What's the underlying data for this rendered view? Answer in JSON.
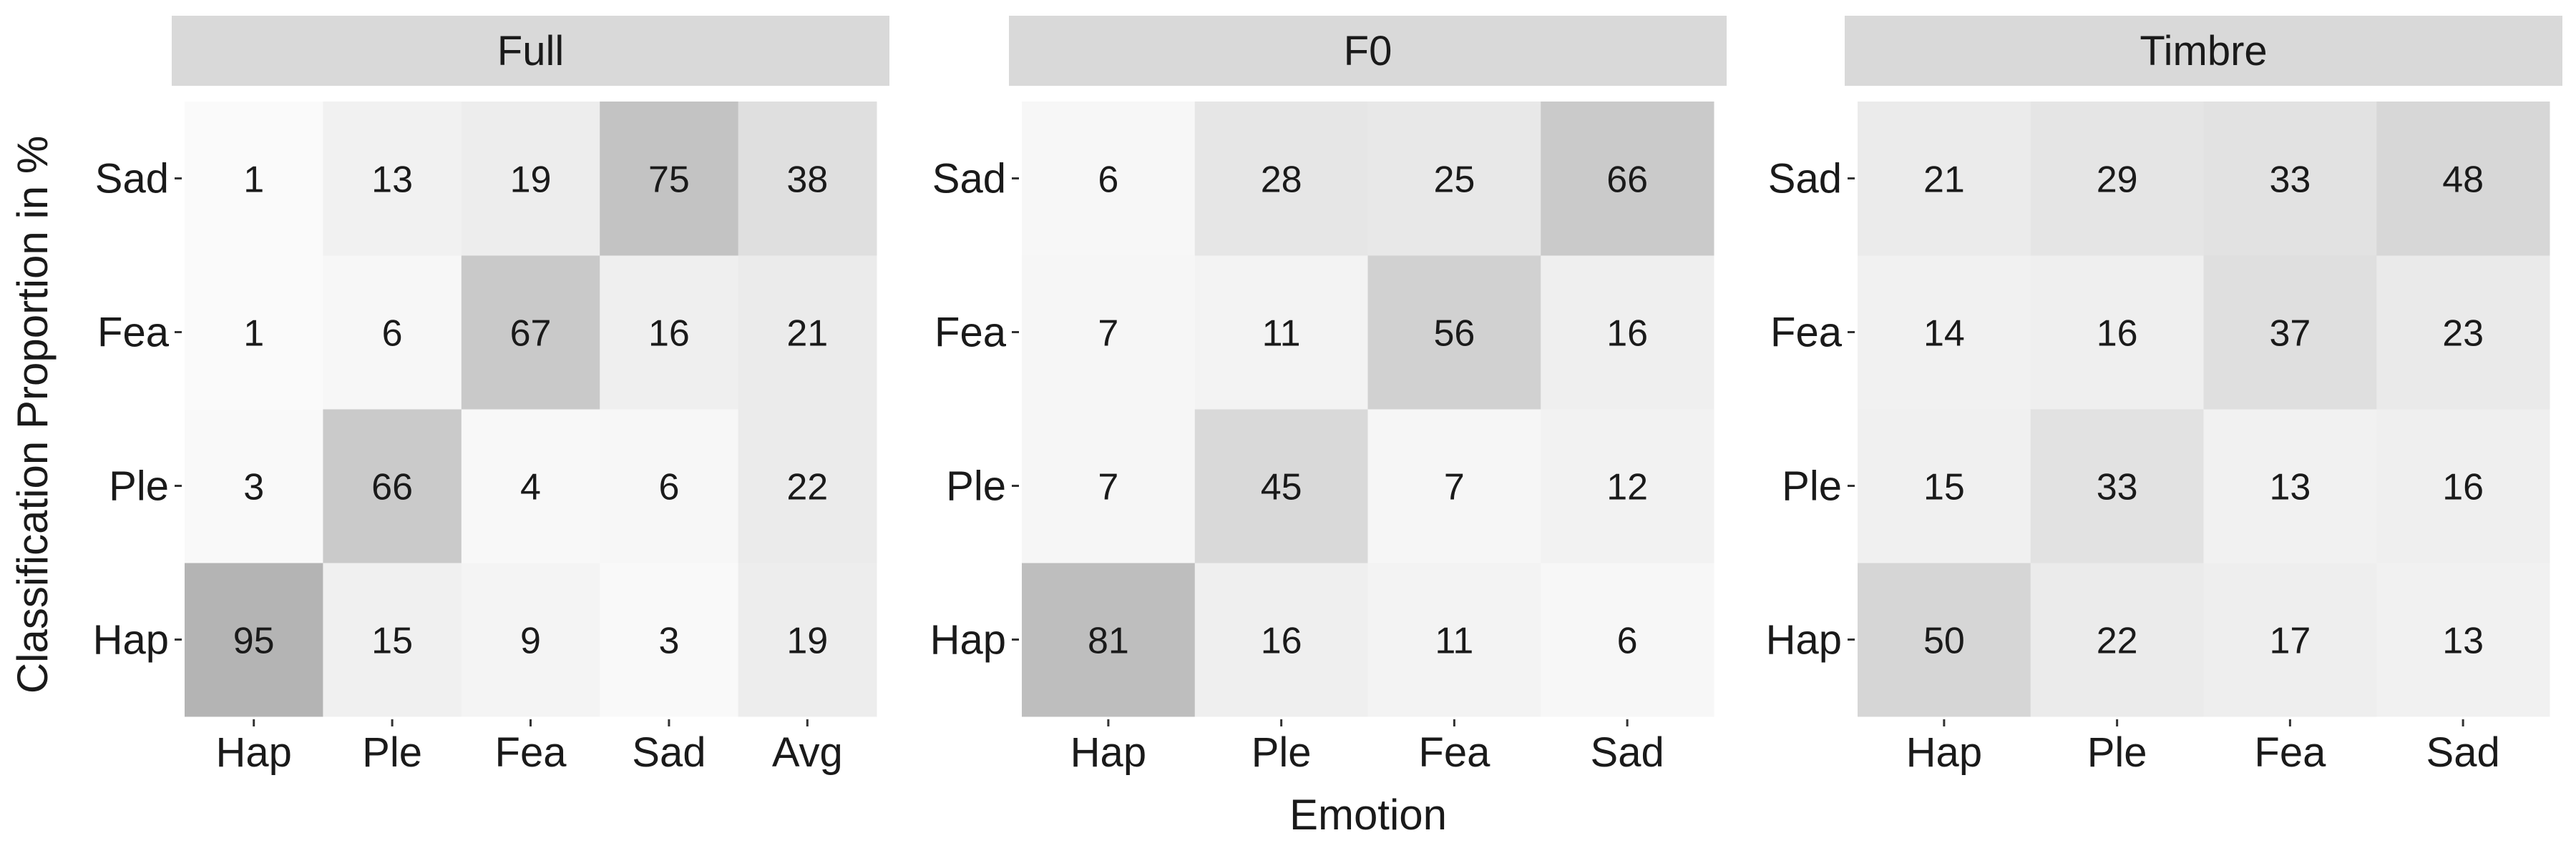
{
  "chart_data": {
    "type": "heatmap",
    "xlabel": "Emotion",
    "ylabel": "Classification Proportion in %",
    "y_categories": [
      "Hap",
      "Ple",
      "Fea",
      "Sad"
    ],
    "color_scale": {
      "low": "#fbfbfb",
      "high": "#b0b0b0",
      "min": 0,
      "max": 100
    },
    "facets": [
      {
        "title": "Full",
        "x_categories": [
          "Hap",
          "Ple",
          "Fea",
          "Sad",
          "Avg"
        ],
        "values": {
          "Sad": [
            1,
            13,
            19,
            75,
            38
          ],
          "Fea": [
            1,
            6,
            67,
            16,
            21
          ],
          "Ple": [
            3,
            66,
            4,
            6,
            22
          ],
          "Hap": [
            95,
            15,
            9,
            3,
            19
          ]
        }
      },
      {
        "title": "F0",
        "x_categories": [
          "Hap",
          "Ple",
          "Fea",
          "Sad"
        ],
        "values": {
          "Sad": [
            6,
            28,
            25,
            66
          ],
          "Fea": [
            7,
            11,
            56,
            16
          ],
          "Ple": [
            7,
            45,
            7,
            12
          ],
          "Hap": [
            81,
            16,
            11,
            6
          ]
        }
      },
      {
        "title": "Timbre",
        "x_categories": [
          "Hap",
          "Ple",
          "Fea",
          "Sad"
        ],
        "values": {
          "Sad": [
            21,
            29,
            33,
            48
          ],
          "Fea": [
            14,
            16,
            37,
            23
          ],
          "Ple": [
            15,
            33,
            13,
            16
          ],
          "Hap": [
            50,
            22,
            17,
            13
          ]
        }
      }
    ]
  }
}
